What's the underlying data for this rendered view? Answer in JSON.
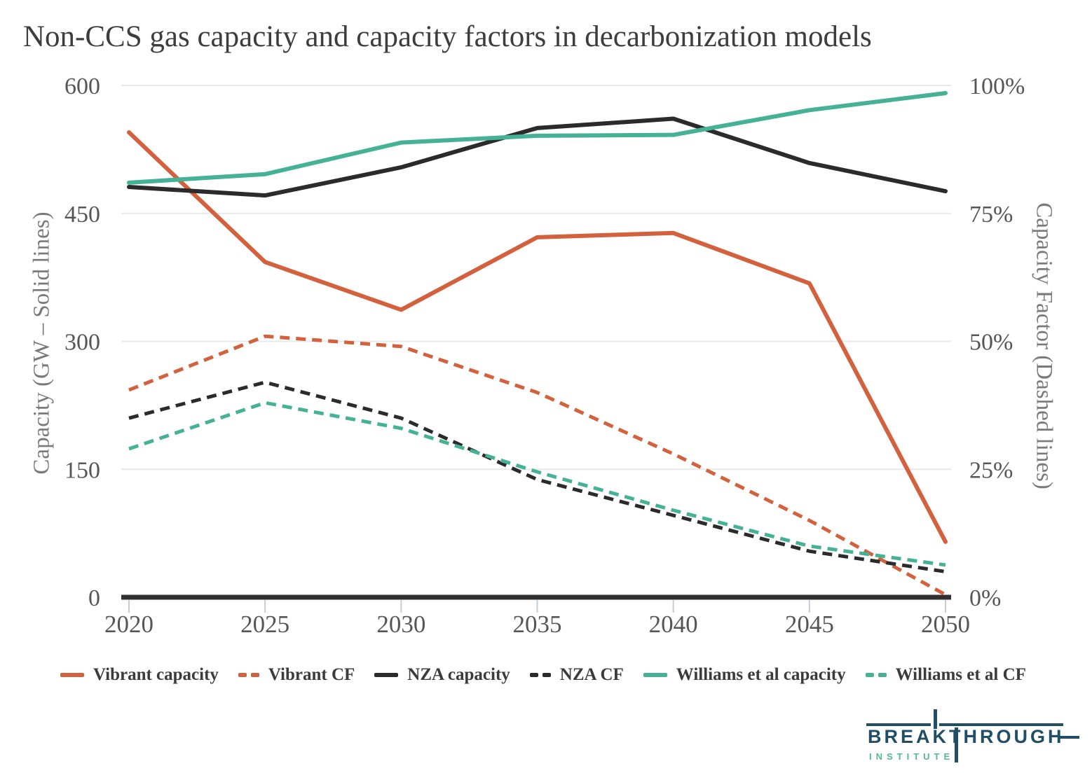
{
  "title": "Non-CCS gas capacity and capacity factors in decarbonization models",
  "chart_data": {
    "type": "line",
    "x": [
      2020,
      2025,
      2030,
      2035,
      2040,
      2045,
      2050
    ],
    "x_tick_labels": [
      "2020",
      "2025",
      "2030",
      "2035",
      "2040",
      "2045",
      "2050"
    ],
    "left_axis": {
      "label": "Capacity (GW – Solid lines)",
      "tick_values": [
        0,
        150,
        300,
        450,
        600
      ],
      "tick_labels": [
        "0",
        "150",
        "300",
        "450",
        "600"
      ],
      "range": [
        0,
        600
      ]
    },
    "right_axis": {
      "label": "Capacity Factor (Dashed lines)",
      "tick_values": [
        0,
        25,
        50,
        75,
        100
      ],
      "tick_labels": [
        "0%",
        "25%",
        "50%",
        "75%",
        "100%"
      ],
      "range": [
        0,
        100
      ]
    },
    "grid": true,
    "legend_position": "bottom",
    "series": [
      {
        "name": "Vibrant capacity",
        "axis": "left",
        "unit": "GW",
        "style": "solid",
        "color": "#D4613E",
        "values": [
          545,
          393,
          337,
          422,
          427,
          368,
          65
        ]
      },
      {
        "name": "Vibrant CF",
        "axis": "right",
        "unit": "%",
        "style": "dashed",
        "color": "#D4613E",
        "values": [
          40.5,
          51,
          49,
          40,
          28,
          15,
          0.5
        ]
      },
      {
        "name": "NZA capacity",
        "axis": "left",
        "unit": "GW",
        "style": "solid",
        "color": "#2B2B2B",
        "values": [
          481,
          471,
          504,
          550,
          561,
          509,
          476
        ]
      },
      {
        "name": "NZA CF",
        "axis": "right",
        "unit": "%",
        "style": "dashed",
        "color": "#2B2B2B",
        "values": [
          35,
          42,
          35,
          23,
          16,
          9,
          5
        ]
      },
      {
        "name": "Williams et al capacity",
        "axis": "left",
        "unit": "GW",
        "style": "solid",
        "color": "#46B295",
        "values": [
          486,
          496,
          533,
          541,
          542,
          571,
          591
        ]
      },
      {
        "name": "Williams et al CF",
        "axis": "right",
        "unit": "%",
        "style": "dashed",
        "color": "#46B295",
        "values": [
          29,
          38,
          33,
          24.5,
          17,
          10,
          6.3
        ]
      }
    ]
  },
  "logo": {
    "wordmark_left": "BREAK",
    "wordmark_right": "THROUGH",
    "subtext": "INSTITUTE",
    "navy": "#1F4E66",
    "teal": "#55B793"
  }
}
